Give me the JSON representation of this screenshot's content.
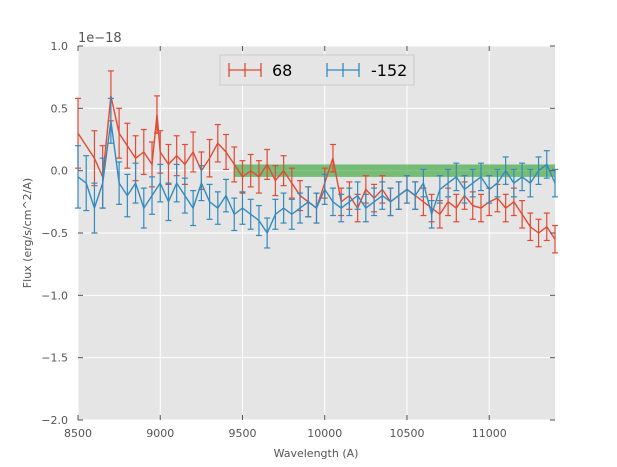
{
  "chart_data": {
    "type": "line",
    "style": "errorbar",
    "title": "",
    "xlabel": "Wavelength (A)",
    "ylabel": "Flux (erg/s/cm^2/A)",
    "xlim": [
      8500,
      11400
    ],
    "ylim": [
      -2.0,
      1.0
    ],
    "y_scale_label": "1e−18",
    "x_ticks": [
      8500,
      9000,
      9500,
      10000,
      10500,
      11000
    ],
    "x_tick_labels": [
      "8500",
      "9000",
      "9500",
      "10000",
      "10500",
      "11000"
    ],
    "y_ticks": [
      1.0,
      0.5,
      0.0,
      -0.5,
      -1.0,
      -1.5,
      -2.0
    ],
    "y_tick_labels": [
      "1.0",
      "0.5",
      "0.0",
      "−0.5",
      "−1.0",
      "−1.5",
      "−2.0"
    ],
    "grid": true,
    "legend_position": "top-center",
    "band": {
      "x_start": 9450,
      "x_end": 11400,
      "y_low": -0.05,
      "y_high": 0.05,
      "color": "#2ca02c"
    },
    "series": [
      {
        "name": "68",
        "color": "#e24a33",
        "x": [
          8500,
          8600,
          8650,
          8700,
          8750,
          8800,
          8850,
          8900,
          8950,
          8980,
          9000,
          9050,
          9100,
          9150,
          9200,
          9250,
          9300,
          9350,
          9400,
          9450,
          9500,
          9550,
          9600,
          9650,
          9700,
          9750,
          9800,
          9850,
          9900,
          9950,
          10000,
          10050,
          10100,
          10150,
          10200,
          10250,
          10300,
          10350,
          10400,
          10450,
          10500,
          10550,
          10600,
          10650,
          10700,
          10750,
          10800,
          10850,
          10900,
          10950,
          11000,
          11050,
          11100,
          11150,
          11200,
          11250,
          11300,
          11350,
          11400
        ],
        "y": [
          0.3,
          0.1,
          -0.05,
          0.6,
          0.3,
          0.2,
          0.1,
          0.15,
          0.05,
          0.45,
          0.15,
          0.05,
          0.12,
          0.05,
          0.15,
          0.0,
          0.1,
          0.22,
          0.15,
          0.05,
          -0.05,
          0.0,
          -0.05,
          0.05,
          -0.08,
          0.0,
          -0.1,
          -0.2,
          -0.25,
          -0.3,
          -0.1,
          0.1,
          -0.25,
          -0.2,
          -0.3,
          -0.15,
          -0.22,
          -0.15,
          -0.25,
          -0.2,
          -0.15,
          -0.2,
          -0.25,
          -0.3,
          -0.35,
          -0.25,
          -0.3,
          -0.2,
          -0.28,
          -0.3,
          -0.25,
          -0.22,
          -0.3,
          -0.25,
          -0.35,
          -0.45,
          -0.5,
          -0.45,
          -0.55
        ],
        "err": [
          0.28,
          0.22,
          0.25,
          0.2,
          0.2,
          0.18,
          0.18,
          0.18,
          0.18,
          0.15,
          0.17,
          0.16,
          0.16,
          0.16,
          0.16,
          0.15,
          0.15,
          0.15,
          0.14,
          0.14,
          0.13,
          0.13,
          0.13,
          0.12,
          0.12,
          0.12,
          0.12,
          0.12,
          0.12,
          0.12,
          0.12,
          0.11,
          0.11,
          0.11,
          0.11,
          0.11,
          0.11,
          0.11,
          0.11,
          0.11,
          0.11,
          0.11,
          0.11,
          0.11,
          0.11,
          0.11,
          0.11,
          0.11,
          0.11,
          0.11,
          0.11,
          0.11,
          0.11,
          0.11,
          0.11,
          0.11,
          0.11,
          0.11,
          0.11
        ]
      },
      {
        "name": "-152",
        "color": "#348abd",
        "x": [
          8500,
          8550,
          8600,
          8650,
          8700,
          8750,
          8800,
          8850,
          8900,
          8950,
          9000,
          9050,
          9100,
          9150,
          9200,
          9250,
          9300,
          9350,
          9400,
          9450,
          9500,
          9550,
          9600,
          9650,
          9700,
          9750,
          9800,
          9850,
          9900,
          9950,
          10000,
          10050,
          10100,
          10150,
          10200,
          10250,
          10300,
          10350,
          10400,
          10450,
          10500,
          10550,
          10600,
          10650,
          10700,
          10750,
          10800,
          10850,
          10900,
          10950,
          11000,
          11050,
          11100,
          11150,
          11200,
          11250,
          11300,
          11350,
          11400
        ],
        "y": [
          -0.05,
          -0.1,
          -0.3,
          -0.1,
          0.4,
          -0.1,
          -0.2,
          -0.1,
          -0.3,
          -0.2,
          -0.1,
          -0.25,
          -0.1,
          -0.2,
          -0.3,
          -0.1,
          -0.25,
          -0.3,
          -0.2,
          -0.35,
          -0.3,
          -0.35,
          -0.4,
          -0.5,
          -0.35,
          -0.3,
          -0.35,
          -0.3,
          -0.25,
          -0.3,
          -0.15,
          -0.25,
          -0.3,
          -0.25,
          -0.2,
          -0.3,
          -0.25,
          -0.2,
          -0.25,
          -0.2,
          -0.15,
          -0.2,
          -0.1,
          -0.35,
          -0.15,
          -0.1,
          -0.05,
          -0.15,
          -0.1,
          -0.05,
          -0.15,
          -0.1,
          0.0,
          -0.1,
          -0.05,
          -0.1,
          0.0,
          0.05,
          -0.1
        ],
        "err": [
          0.25,
          0.22,
          0.2,
          0.2,
          0.18,
          0.17,
          0.17,
          0.16,
          0.16,
          0.15,
          0.15,
          0.15,
          0.15,
          0.14,
          0.14,
          0.14,
          0.14,
          0.13,
          0.13,
          0.13,
          0.13,
          0.12,
          0.12,
          0.12,
          0.12,
          0.12,
          0.12,
          0.12,
          0.12,
          0.12,
          0.12,
          0.11,
          0.11,
          0.11,
          0.11,
          0.11,
          0.11,
          0.11,
          0.11,
          0.11,
          0.11,
          0.11,
          0.11,
          0.11,
          0.11,
          0.11,
          0.11,
          0.11,
          0.11,
          0.11,
          0.11,
          0.11,
          0.11,
          0.11,
          0.11,
          0.11,
          0.11,
          0.11,
          0.11
        ]
      }
    ]
  }
}
